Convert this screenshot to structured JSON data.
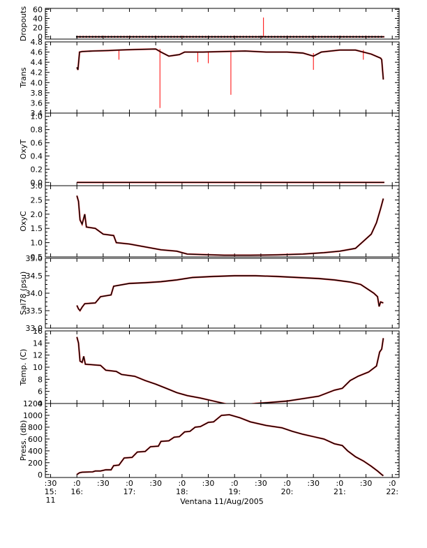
{
  "figure": {
    "xlabel": "Ventana 11/Aug/2005",
    "x_tick_labels": [
      {
        "t": 15.5,
        "l1": ":30",
        "l2": "15:",
        "l3": "11"
      },
      {
        "t": 16.0,
        "l1": ":0",
        "l2": "16:",
        "l3": ""
      },
      {
        "t": 16.5,
        "l1": ":30",
        "l2": "",
        "l3": ""
      },
      {
        "t": 17.0,
        "l1": ":0",
        "l2": "17:",
        "l3": ""
      },
      {
        "t": 17.5,
        "l1": ":30",
        "l2": "",
        "l3": ""
      },
      {
        "t": 18.0,
        "l1": ":0",
        "l2": "18:",
        "l3": ""
      },
      {
        "t": 18.5,
        "l1": ":30",
        "l2": "",
        "l3": ""
      },
      {
        "t": 19.0,
        "l1": ":0",
        "l2": "19:",
        "l3": ""
      },
      {
        "t": 19.5,
        "l1": ":30",
        "l2": "",
        "l3": ""
      },
      {
        "t": 20.0,
        "l1": ":0",
        "l2": "20:",
        "l3": ""
      },
      {
        "t": 20.5,
        "l1": ":30",
        "l2": "",
        "l3": ""
      },
      {
        "t": 21.0,
        "l1": ":0",
        "l2": "21:",
        "l3": ""
      },
      {
        "t": 21.5,
        "l1": ":30",
        "l2": "",
        "l3": ""
      },
      {
        "t": 22.0,
        "l1": ":0",
        "l2": "22:",
        "l3": ""
      }
    ],
    "colors": {
      "raw": "#ff0000",
      "smoothed": "#000000",
      "axes": "#000000"
    }
  },
  "chart_data": [
    {
      "type": "line",
      "ylabel": "Dropouts",
      "ylim": [
        -5,
        62
      ],
      "yticks": [
        0,
        20,
        40,
        60
      ],
      "ytick_labels": [
        "0",
        "20",
        "40",
        "60"
      ],
      "marker_dots": true,
      "series": [
        {
          "values": [
            [
              16.0,
              0
            ],
            [
              21.85,
              0
            ]
          ]
        }
      ],
      "spikes": [
        {
          "x": 19.55,
          "y": 42
        }
      ]
    },
    {
      "type": "line",
      "ylabel": "Trans",
      "ylim": [
        3.4,
        4.8
      ],
      "yticks": [
        3.4,
        3.6,
        3.8,
        4.0,
        4.2,
        4.4,
        4.6,
        4.8
      ],
      "ytick_labels": [
        "3.4",
        "3.6",
        "3.8",
        "4.0",
        "4.2",
        "4.4",
        "4.6",
        "4.8"
      ],
      "series": [
        {
          "values": [
            [
              16.0,
              4.3
            ],
            [
              16.02,
              4.25
            ],
            [
              16.05,
              4.6
            ],
            [
              16.1,
              4.61
            ],
            [
              16.3,
              4.62
            ],
            [
              16.6,
              4.63
            ],
            [
              16.8,
              4.64
            ],
            [
              17.1,
              4.65
            ],
            [
              17.5,
              4.66
            ],
            [
              17.6,
              4.6
            ],
            [
              17.75,
              4.52
            ],
            [
              17.95,
              4.55
            ],
            [
              18.05,
              4.6
            ],
            [
              18.4,
              4.6
            ],
            [
              18.8,
              4.61
            ],
            [
              19.2,
              4.62
            ],
            [
              19.6,
              4.6
            ],
            [
              20.0,
              4.6
            ],
            [
              20.3,
              4.58
            ],
            [
              20.5,
              4.52
            ],
            [
              20.65,
              4.6
            ],
            [
              21.0,
              4.64
            ],
            [
              21.3,
              4.64
            ],
            [
              21.6,
              4.56
            ],
            [
              21.78,
              4.48
            ],
            [
              21.8,
              4.45
            ],
            [
              21.83,
              4.06
            ]
          ]
        }
      ],
      "spikes": [
        {
          "x": 17.58,
          "y": 3.5
        },
        {
          "x": 18.93,
          "y": 3.76
        },
        {
          "x": 18.3,
          "y": 4.4
        },
        {
          "x": 18.5,
          "y": 4.38
        },
        {
          "x": 16.8,
          "y": 4.45
        },
        {
          "x": 20.5,
          "y": 4.25
        },
        {
          "x": 21.45,
          "y": 4.45
        }
      ]
    },
    {
      "type": "line",
      "ylabel": "OxyT",
      "ylim": [
        -0.05,
        1.05
      ],
      "yticks": [
        0.0,
        0.2,
        0.4,
        0.6,
        0.8,
        1.0
      ],
      "ytick_labels": [
        "0.0",
        "0.2",
        "0.4",
        "0.6",
        "0.8",
        "1.0"
      ],
      "series": [
        {
          "values": [
            [
              16.0,
              0
            ],
            [
              21.85,
              0
            ]
          ]
        }
      ]
    },
    {
      "type": "line",
      "ylabel": "OxyC",
      "ylim": [
        0.5,
        3.0
      ],
      "yticks": [
        0.5,
        1.0,
        1.5,
        2.0,
        2.5,
        3.0
      ],
      "ytick_labels": [
        "0.5",
        "1.0",
        "1.5",
        "2.0",
        "2.5",
        "3.0"
      ],
      "series": [
        {
          "values": [
            [
              16.0,
              2.65
            ],
            [
              16.03,
              2.45
            ],
            [
              16.06,
              1.8
            ],
            [
              16.1,
              1.65
            ],
            [
              16.15,
              2.0
            ],
            [
              16.18,
              1.55
            ],
            [
              16.35,
              1.5
            ],
            [
              16.5,
              1.3
            ],
            [
              16.7,
              1.25
            ],
            [
              16.75,
              1.0
            ],
            [
              17.0,
              0.95
            ],
            [
              17.3,
              0.85
            ],
            [
              17.6,
              0.75
            ],
            [
              17.9,
              0.7
            ],
            [
              18.1,
              0.6
            ],
            [
              18.4,
              0.58
            ],
            [
              18.8,
              0.56
            ],
            [
              19.3,
              0.56
            ],
            [
              19.8,
              0.57
            ],
            [
              20.3,
              0.6
            ],
            [
              20.7,
              0.65
            ],
            [
              21.0,
              0.7
            ],
            [
              21.3,
              0.8
            ],
            [
              21.45,
              1.05
            ],
            [
              21.6,
              1.3
            ],
            [
              21.7,
              1.7
            ],
            [
              21.78,
              2.2
            ],
            [
              21.83,
              2.55
            ]
          ]
        }
      ]
    },
    {
      "type": "line",
      "ylabel": "Sal78 (psu)",
      "ylim": [
        33.0,
        35.0
      ],
      "yticks": [
        33.0,
        33.5,
        34.0,
        34.5,
        35.0
      ],
      "ytick_labels": [
        "33.0",
        "33.5",
        "34.0",
        "34.5",
        "35.0"
      ],
      "series": [
        {
          "values": [
            [
              16.0,
              33.65
            ],
            [
              16.03,
              33.55
            ],
            [
              16.06,
              33.5
            ],
            [
              16.1,
              33.6
            ],
            [
              16.15,
              33.7
            ],
            [
              16.35,
              33.72
            ],
            [
              16.45,
              33.9
            ],
            [
              16.65,
              33.95
            ],
            [
              16.7,
              34.2
            ],
            [
              17.0,
              34.28
            ],
            [
              17.3,
              34.3
            ],
            [
              17.6,
              34.33
            ],
            [
              17.9,
              34.38
            ],
            [
              18.2,
              34.45
            ],
            [
              18.6,
              34.48
            ],
            [
              19.0,
              34.5
            ],
            [
              19.4,
              34.5
            ],
            [
              19.8,
              34.48
            ],
            [
              20.2,
              34.45
            ],
            [
              20.6,
              34.42
            ],
            [
              20.9,
              34.38
            ],
            [
              21.2,
              34.32
            ],
            [
              21.4,
              34.25
            ],
            [
              21.55,
              34.1
            ],
            [
              21.65,
              34.0
            ],
            [
              21.72,
              33.9
            ],
            [
              21.75,
              33.62
            ],
            [
              21.78,
              33.75
            ],
            [
              21.83,
              33.72
            ]
          ]
        }
      ]
    },
    {
      "type": "line",
      "ylabel": "Temp. (C)",
      "ylim": [
        4,
        16
      ],
      "yticks": [
        4,
        6,
        8,
        10,
        12,
        14,
        16
      ],
      "ytick_labels": [
        "4",
        "6",
        "8",
        "10",
        "12",
        "14",
        "16"
      ],
      "series": [
        {
          "values": [
            [
              16.0,
              15.0
            ],
            [
              16.03,
              14.0
            ],
            [
              16.06,
              11.0
            ],
            [
              16.1,
              10.8
            ],
            [
              16.13,
              11.8
            ],
            [
              16.16,
              10.5
            ],
            [
              16.45,
              10.3
            ],
            [
              16.55,
              9.5
            ],
            [
              16.75,
              9.3
            ],
            [
              16.85,
              8.8
            ],
            [
              17.1,
              8.5
            ],
            [
              17.3,
              7.8
            ],
            [
              17.5,
              7.2
            ],
            [
              17.7,
              6.5
            ],
            [
              17.9,
              5.8
            ],
            [
              18.1,
              5.3
            ],
            [
              18.35,
              4.9
            ],
            [
              18.6,
              4.4
            ],
            [
              18.9,
              3.8
            ],
            [
              19.1,
              3.7
            ],
            [
              19.4,
              4.0
            ],
            [
              19.7,
              4.2
            ],
            [
              20.0,
              4.4
            ],
            [
              20.3,
              4.8
            ],
            [
              20.6,
              5.2
            ],
            [
              20.9,
              6.2
            ],
            [
              21.05,
              6.5
            ],
            [
              21.2,
              7.8
            ],
            [
              21.35,
              8.5
            ],
            [
              21.55,
              9.2
            ],
            [
              21.7,
              10.2
            ],
            [
              21.76,
              12.5
            ],
            [
              21.8,
              13.0
            ],
            [
              21.83,
              14.8
            ]
          ]
        }
      ]
    },
    {
      "type": "line",
      "ylabel": "Press. (db)",
      "ylim": [
        -50,
        1200
      ],
      "yticks": [
        0,
        200,
        400,
        600,
        800,
        1000,
        1200
      ],
      "ytick_labels": [
        "0",
        "200",
        "400",
        "600",
        "800",
        "1000",
        "1200"
      ],
      "series": [
        {
          "values": [
            [
              16.0,
              0
            ],
            [
              16.05,
              30
            ],
            [
              16.1,
              40
            ],
            [
              16.3,
              45
            ],
            [
              16.35,
              60
            ],
            [
              16.45,
              60
            ],
            [
              16.55,
              80
            ],
            [
              16.65,
              80
            ],
            [
              16.7,
              150
            ],
            [
              16.8,
              160
            ],
            [
              16.9,
              280
            ],
            [
              17.05,
              290
            ],
            [
              17.15,
              380
            ],
            [
              17.3,
              390
            ],
            [
              17.4,
              470
            ],
            [
              17.55,
              480
            ],
            [
              17.6,
              560
            ],
            [
              17.75,
              570
            ],
            [
              17.85,
              630
            ],
            [
              17.95,
              640
            ],
            [
              18.05,
              720
            ],
            [
              18.15,
              730
            ],
            [
              18.25,
              800
            ],
            [
              18.35,
              810
            ],
            [
              18.5,
              880
            ],
            [
              18.6,
              890
            ],
            [
              18.75,
              1000
            ],
            [
              18.9,
              1010
            ],
            [
              19.1,
              960
            ],
            [
              19.3,
              890
            ],
            [
              19.6,
              830
            ],
            [
              19.9,
              790
            ],
            [
              20.1,
              730
            ],
            [
              20.3,
              680
            ],
            [
              20.5,
              640
            ],
            [
              20.7,
              600
            ],
            [
              20.9,
              520
            ],
            [
              21.05,
              490
            ],
            [
              21.15,
              400
            ],
            [
              21.3,
              300
            ],
            [
              21.45,
              230
            ],
            [
              21.6,
              140
            ],
            [
              21.72,
              60
            ],
            [
              21.8,
              0
            ],
            [
              21.83,
              -20
            ]
          ]
        }
      ]
    }
  ]
}
